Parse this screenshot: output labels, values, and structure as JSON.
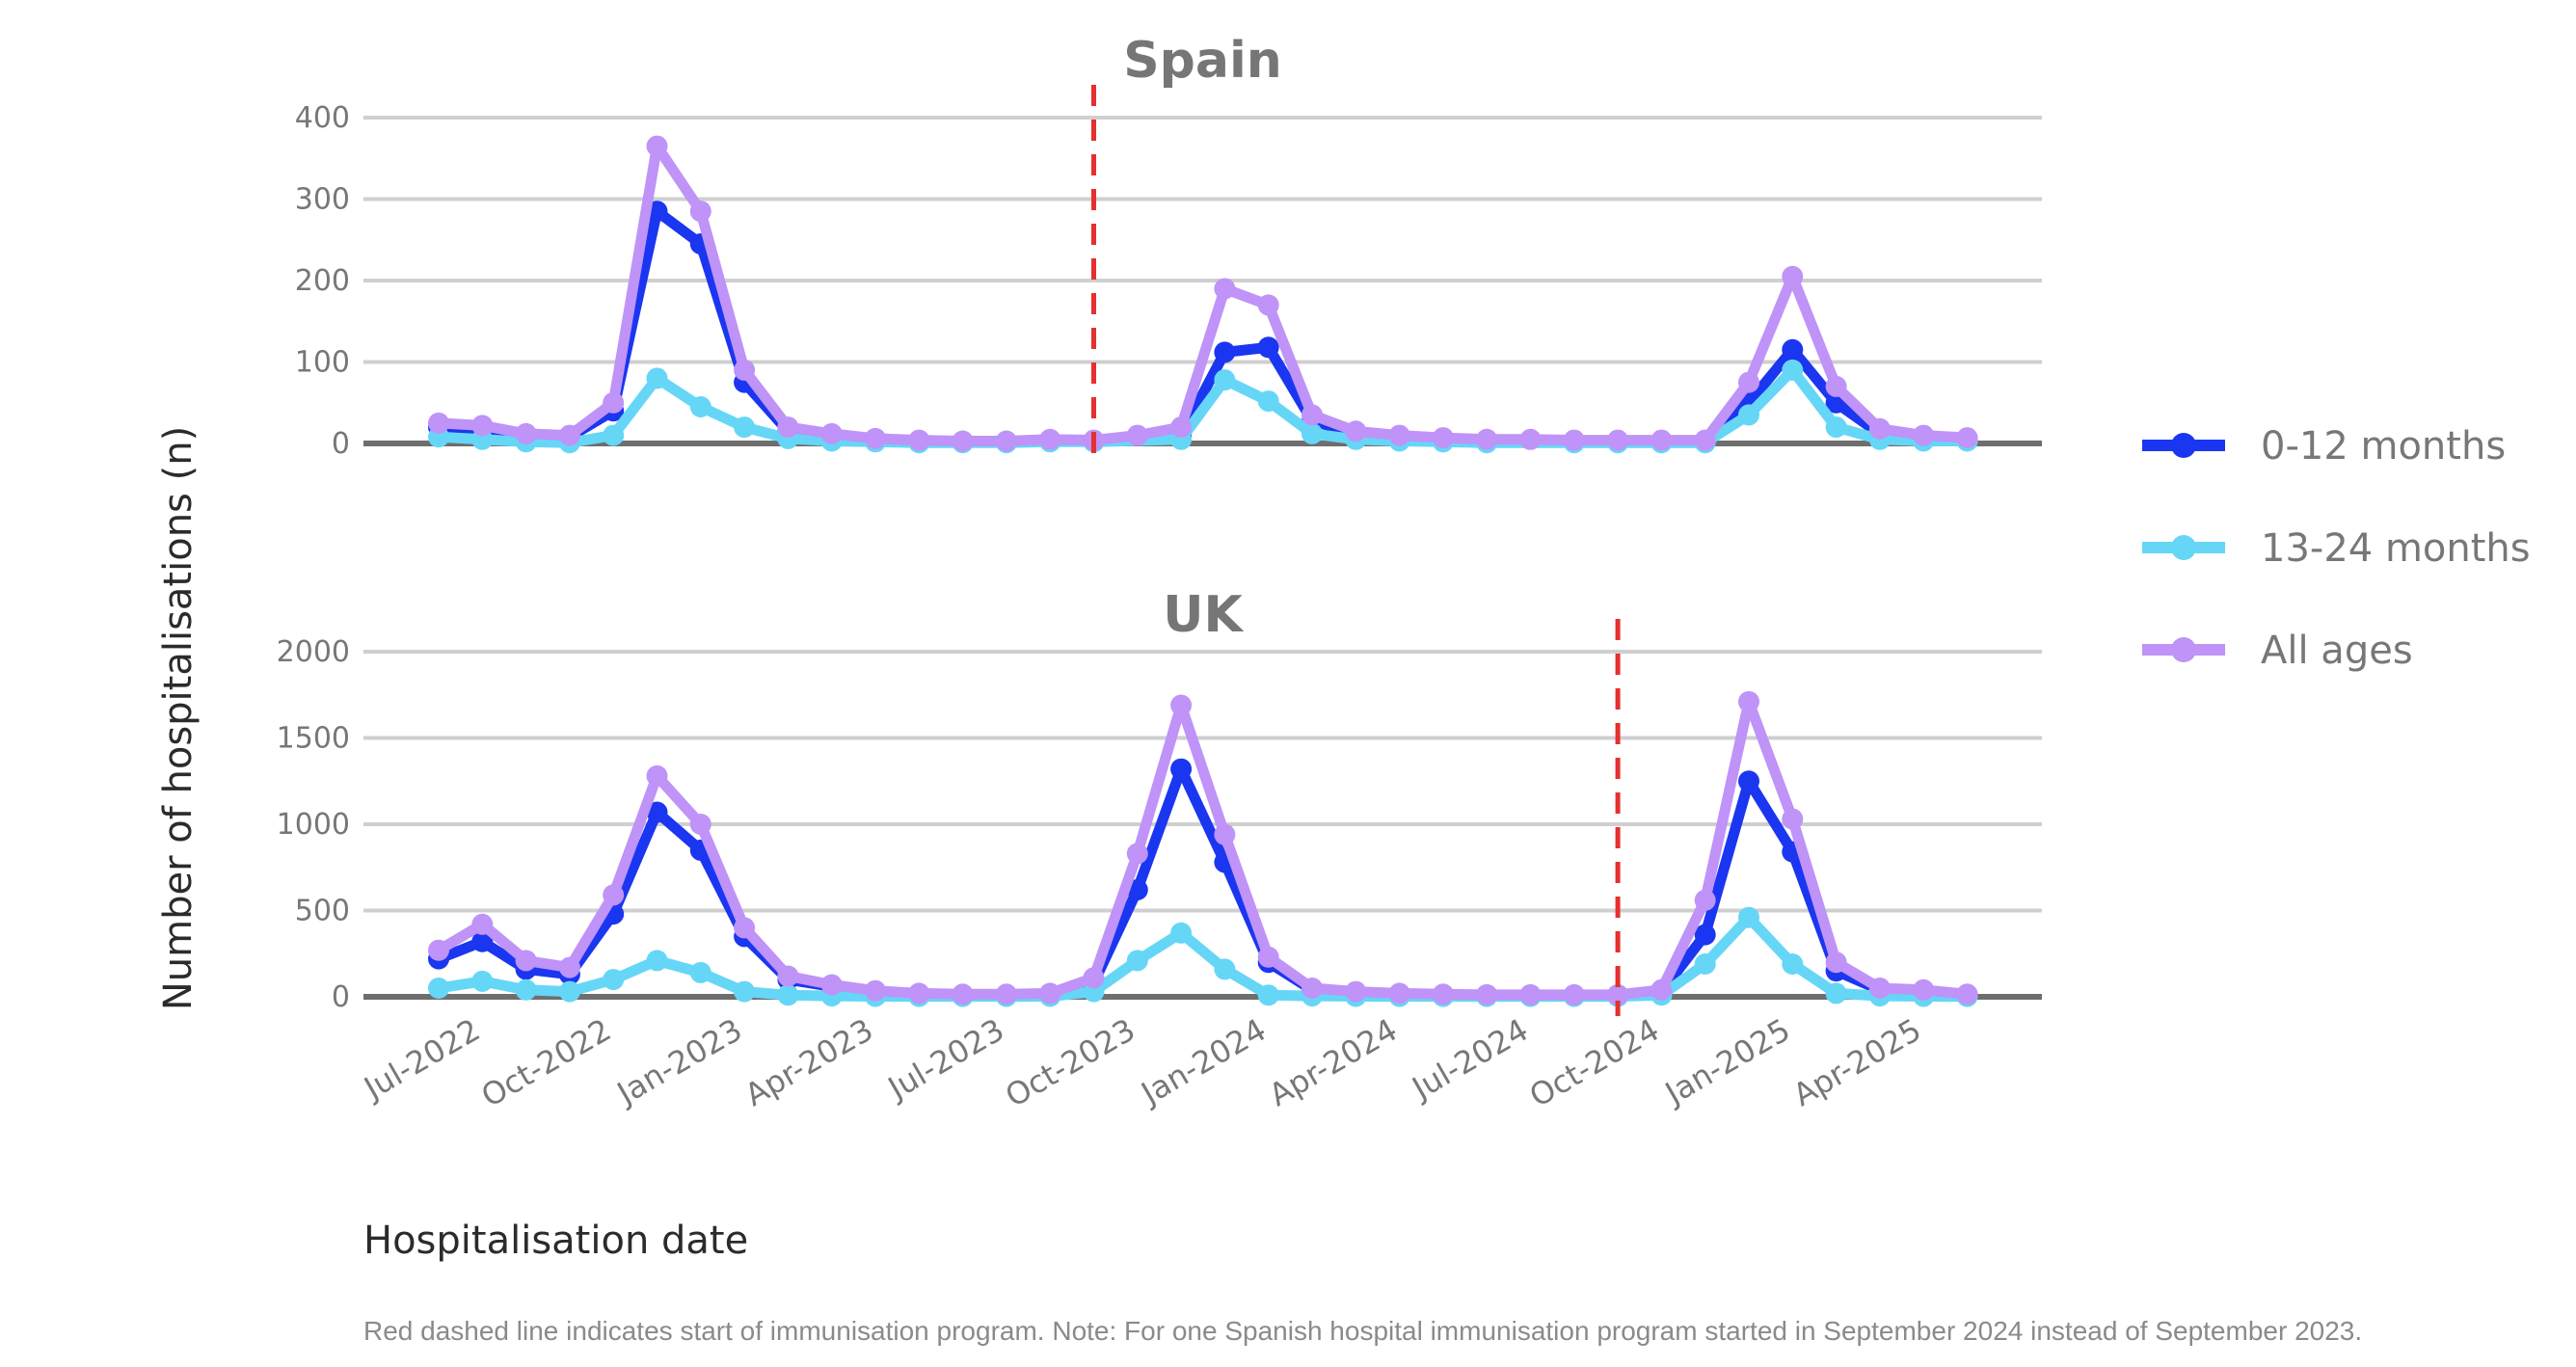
{
  "chart_data": {
    "type": "line",
    "x_dates": [
      "2022-06",
      "2022-07",
      "2022-08",
      "2022-09",
      "2022-10",
      "2022-11",
      "2022-12",
      "2023-01",
      "2023-02",
      "2023-03",
      "2023-04",
      "2023-05",
      "2023-06",
      "2023-07",
      "2023-08",
      "2023-09",
      "2023-10",
      "2023-11",
      "2023-12",
      "2024-01",
      "2024-02",
      "2024-03",
      "2024-04",
      "2024-05",
      "2024-06",
      "2024-07",
      "2024-08",
      "2024-09",
      "2024-10",
      "2024-11",
      "2024-12",
      "2025-01",
      "2025-02",
      "2025-03",
      "2025-04",
      "2025-05"
    ],
    "xlabel": "Hospitalisation date",
    "ylabel": "Number of hospitalisations (n)",
    "x_ticks": [
      {
        "date": "2022-07",
        "label": "Jul-2022"
      },
      {
        "date": "2022-10",
        "label": "Oct-2022"
      },
      {
        "date": "2023-01",
        "label": "Jan-2023"
      },
      {
        "date": "2023-04",
        "label": "Apr-2023"
      },
      {
        "date": "2023-07",
        "label": "Jul-2023"
      },
      {
        "date": "2023-10",
        "label": "Oct-2023"
      },
      {
        "date": "2024-01",
        "label": "Jan-2024"
      },
      {
        "date": "2024-04",
        "label": "Apr-2024"
      },
      {
        "date": "2024-07",
        "label": "Jul-2024"
      },
      {
        "date": "2024-10",
        "label": "Oct-2024"
      },
      {
        "date": "2025-01",
        "label": "Jan-2025"
      },
      {
        "date": "2025-04",
        "label": "Apr-2025"
      }
    ],
    "legend": {
      "placement": "right",
      "entries": [
        {
          "name": "0-12 months",
          "color": "#1b36f0"
        },
        {
          "name": "13-24 months",
          "color": "#66d6f7"
        },
        {
          "name": "All ages",
          "color": "#bf93f7"
        }
      ]
    },
    "caption": "Red dashed line indicates start of immunisation program. Note: For one Spanish hospital immunisation program started in September 2024 instead of September 2023.",
    "marker_color": "#e53030",
    "panels": [
      {
        "title": "Spain",
        "ylim": [
          0,
          400
        ],
        "y_ticks": [
          "0",
          "100",
          "200",
          "300",
          "400"
        ],
        "y_tick_values": [
          0,
          100,
          200,
          300,
          400
        ],
        "vline_date": "2023-09",
        "series": [
          {
            "name": "0-12 months",
            "color": "#1b36f0",
            "values": [
              20,
              15,
              10,
              8,
              40,
              285,
              245,
              75,
              15,
              10,
              5,
              3,
              2,
              2,
              4,
              3,
              null,
              10,
              112,
              118,
              28,
              12,
              8,
              5,
              4,
              null,
              3,
              3,
              3,
              3,
              50,
              115,
              50,
              12,
              8,
              6
            ]
          },
          {
            "name": "13-24 months",
            "color": "#66d6f7",
            "values": [
              8,
              5,
              2,
              1,
              10,
              80,
              45,
              20,
              6,
              3,
              2,
              1,
              1,
              1,
              2,
              2,
              null,
              5,
              78,
              52,
              12,
              5,
              3,
              2,
              1,
              null,
              1,
              1,
              1,
              1,
              35,
              90,
              20,
              5,
              3,
              3
            ]
          },
          {
            "name": "All ages",
            "color": "#bf93f7",
            "values": [
              25,
              22,
              12,
              10,
              50,
              365,
              285,
              90,
              20,
              12,
              6,
              4,
              3,
              3,
              5,
              4,
              10,
              20,
              190,
              170,
              35,
              15,
              10,
              7,
              5,
              5,
              4,
              4,
              4,
              4,
              75,
              205,
              70,
              18,
              10,
              7
            ]
          }
        ]
      },
      {
        "title": "UK",
        "ylim": [
          0,
          2000
        ],
        "y_ticks": [
          "0",
          "500",
          "1000",
          "1500",
          "2000"
        ],
        "y_tick_values": [
          0,
          500,
          1000,
          1500,
          2000
        ],
        "vline_date": "2024-09",
        "series": [
          {
            "name": "0-12 months",
            "color": "#1b36f0",
            "values": [
              220,
              320,
              160,
              130,
              480,
              1070,
              850,
              350,
              100,
              60,
              25,
              15,
              10,
              10,
              15,
              80,
              620,
              1320,
              780,
              200,
              40,
              25,
              15,
              12,
              10,
              10,
              10,
              10,
              30,
              360,
              1250,
              840,
              150,
              40,
              30,
              10
            ]
          },
          {
            "name": "13-24 months",
            "color": "#66d6f7",
            "values": [
              50,
              90,
              40,
              30,
              100,
              210,
              140,
              30,
              10,
              5,
              3,
              2,
              2,
              2,
              3,
              30,
              210,
              370,
              160,
              10,
              5,
              3,
              2,
              2,
              2,
              2,
              2,
              2,
              10,
              190,
              460,
              190,
              20,
              5,
              3,
              2
            ]
          },
          {
            "name": "All ages",
            "color": "#bf93f7",
            "values": [
              270,
              420,
              210,
              170,
              590,
              1280,
              1000,
              400,
              120,
              70,
              35,
              20,
              15,
              15,
              20,
              110,
              830,
              1690,
              940,
              230,
              50,
              30,
              20,
              15,
              12,
              12,
              12,
              12,
              40,
              560,
              1710,
              1030,
              200,
              50,
              40,
              15
            ]
          }
        ]
      }
    ]
  }
}
